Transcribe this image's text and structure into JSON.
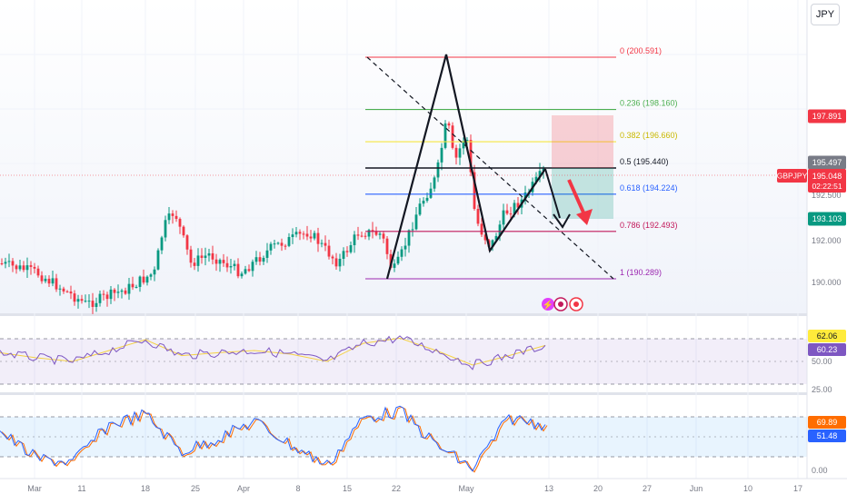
{
  "currency_label": "JPY",
  "symbol": "GBPJPY",
  "countdown": "02:22:51",
  "main_axis": {
    "ticks": [
      "192.500",
      "192.000",
      "190.000"
    ],
    "labels": [
      {
        "value": "197.891",
        "color": "#f23645",
        "dark": false
      },
      {
        "value": "195.497",
        "color": "#787b86",
        "dark": false
      },
      {
        "value": "195.048",
        "color": "#f23645",
        "dark": false,
        "symbol": true
      },
      {
        "value": "193.103",
        "color": "#089981",
        "dark": false
      }
    ]
  },
  "fib_levels": [
    {
      "ratio": "0",
      "price": "200.591",
      "color": "#f23645"
    },
    {
      "ratio": "0.236",
      "price": "198.160",
      "color": "#4caf50"
    },
    {
      "ratio": "0.382",
      "price": "196.660",
      "color": "#f5e642"
    },
    {
      "ratio": "0.5",
      "price": "195.440",
      "color": "#131722"
    },
    {
      "ratio": "0.618",
      "price": "194.224",
      "color": "#2962ff"
    },
    {
      "ratio": "0.786",
      "price": "192.493",
      "color": "#c2185b"
    },
    {
      "ratio": "1",
      "price": "190.289",
      "color": "#9c27b0"
    }
  ],
  "rsi_axis": {
    "labels": [
      {
        "value": "62.06",
        "bg": "#ffeb3b",
        "fg": "#131722"
      },
      {
        "value": "60.23",
        "bg": "#7e57c2",
        "fg": "#ffffff"
      }
    ],
    "ticks": [
      "50.00",
      "25.00"
    ]
  },
  "stoch_axis": {
    "labels": [
      {
        "value": "69.89",
        "bg": "#ff6d00",
        "fg": "#ffffff"
      },
      {
        "value": "51.48",
        "bg": "#2962ff",
        "fg": "#ffffff"
      }
    ],
    "ticks": [
      "0.00"
    ]
  },
  "time_axis": [
    "Mar",
    "11",
    "18",
    "25",
    "Apr",
    "8",
    "15",
    "22",
    "May",
    "13",
    "20",
    "27",
    "Jun",
    "10",
    "17"
  ],
  "event_icons": [
    "flash-icon",
    "flag-icon",
    "dot-icon"
  ],
  "chart_data": {
    "type": "line",
    "title": "",
    "symbol": "GBPJPY",
    "price_range": [
      189.0,
      202.0
    ],
    "last_price": 195.048,
    "target_price": 193.103,
    "stop_price": 197.891,
    "price_series_approx": [
      {
        "x": "Feb 26",
        "close": 190.9
      },
      {
        "x": "Mar 4",
        "close": 190.3
      },
      {
        "x": "Mar 11",
        "close": 189.9
      },
      {
        "x": "Mar 18",
        "close": 191.8
      },
      {
        "x": "Mar 21",
        "close": 193.5
      },
      {
        "x": "Mar 25",
        "close": 191.2
      },
      {
        "x": "Apr 1",
        "close": 191.5
      },
      {
        "x": "Apr 8",
        "close": 192.5
      },
      {
        "x": "Apr 15",
        "close": 192.2
      },
      {
        "x": "Apr 21",
        "close": 190.5
      },
      {
        "x": "Apr 25",
        "close": 195.5
      },
      {
        "x": "Apr 29",
        "close": 197.8
      },
      {
        "x": "May 3",
        "close": 196.0
      },
      {
        "x": "May 6",
        "close": 192.2
      },
      {
        "x": "May 9",
        "close": 193.5
      },
      {
        "x": "May 13",
        "close": 195.05
      }
    ],
    "rsi_series_approx": [
      52,
      45,
      40,
      55,
      70,
      48,
      52,
      55,
      50,
      40,
      65,
      72,
      55,
      35,
      48,
      62
    ],
    "stoch_series_approx": [
      60,
      20,
      15,
      70,
      85,
      30,
      50,
      75,
      40,
      10,
      80,
      90,
      40,
      5,
      80,
      70
    ],
    "grid": true,
    "legend": "none"
  }
}
